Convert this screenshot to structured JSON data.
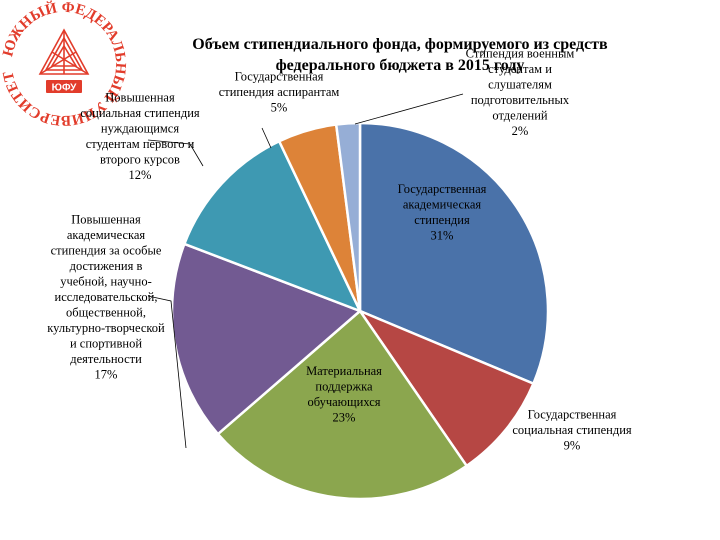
{
  "logo": {
    "ring_text": "ЮЖНЫЙ ФЕДЕРАЛЬНЫЙ УНИВЕРСИТЕТ",
    "abbr": "ЮФУ",
    "icon": "university-logo-icon",
    "color": "#e23c2b"
  },
  "chart_data": {
    "type": "pie",
    "title_lines": [
      "Объем стипендиального фонда, формируемого из средств",
      "федерального бюджета в 2015 году"
    ],
    "slices": [
      {
        "name": "Государственная академическая стипендия",
        "value": 31,
        "label_lines": [
          "Государственная",
          "академическая",
          "стипендия",
          "31%"
        ],
        "color": "#4a72a9"
      },
      {
        "name": "Государственная социальная стипендия",
        "value": 9,
        "label_lines": [
          "Государственная",
          "социальная стипендия",
          "9%"
        ],
        "color": "#b64744"
      },
      {
        "name": "Материальная поддержка обучающихся",
        "value": 23,
        "label_lines": [
          "Материальная",
          "поддержка",
          "обучающихся",
          "23%"
        ],
        "color": "#8ba64e"
      },
      {
        "name": "Повышенная академическая стипендия за особые достижения в учебной, научно-исследовательской, общественной, культурно-творческой и спортивной деятельности",
        "value": 17,
        "label_lines": [
          "Повышенная",
          "академическая",
          "стипендия за особые",
          "достижения в",
          "учебной, научно-",
          "исследовательской,",
          "общественной,",
          "культурно-творческой",
          "и спортивной",
          "деятельности",
          "17%"
        ],
        "color": "#725a92"
      },
      {
        "name": "Повышенная социальная стипендия нуждающимся студентам первого и второго курсов",
        "value": 12,
        "label_lines": [
          "Повышенная",
          "социальная стипендия",
          "нуждающимся",
          "студентам первого и",
          "второго курсов",
          "12%"
        ],
        "color": "#3e99b2"
      },
      {
        "name": "Государственная стипендия аспирантам",
        "value": 5,
        "label_lines": [
          "Государственная",
          "стипендия аспирантам",
          "5%"
        ],
        "color": "#dd8338"
      },
      {
        "name": "Стипендия военным студентам и слушателям подготовительных отделений",
        "value": 2,
        "label_lines": [
          "Стипендия военным",
          "студентам и",
          "слушателям",
          "подготовительных",
          "отделений",
          "2%"
        ],
        "color": "#96aed6"
      }
    ]
  }
}
